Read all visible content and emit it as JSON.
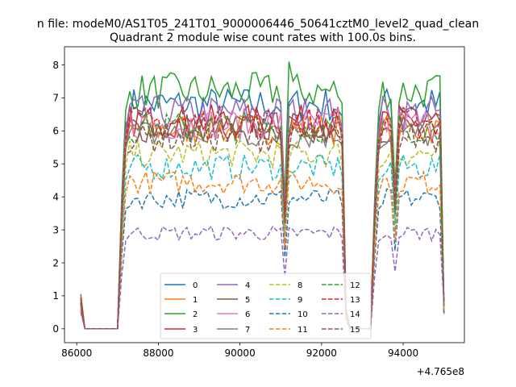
{
  "figure": {
    "suptitle": "n file: modeM0/AS1T05_241T01_9000006446_50641cztM0_level2_quad_clean",
    "offset_label": "+4.765e8"
  },
  "chart_data": {
    "type": "line",
    "title": "Quadrant 2 module wise count rates with 100.0s bins.",
    "xlabel": "",
    "ylabel": "",
    "xlim": [
      85700,
      95500
    ],
    "ylim": [
      -0.42,
      8.55
    ],
    "x_offset": 476500000,
    "x_ticks": [
      86000,
      88000,
      90000,
      92000,
      94000
    ],
    "x_tick_labels": [
      "86000",
      "88000",
      "90000",
      "92000",
      "94000"
    ],
    "y_ticks": [
      0,
      1,
      2,
      3,
      4,
      5,
      6,
      7,
      8
    ],
    "y_tick_labels": [
      "0",
      "1",
      "2",
      "3",
      "4",
      "5",
      "6",
      "7",
      "8"
    ],
    "grid": false,
    "legend_placement": "lower center, 4 columns",
    "x_bins": {
      "start": 86100,
      "step": 100,
      "count": 90
    },
    "segments": [
      {
        "from": 86100,
        "to": 86200,
        "state": "decay"
      },
      {
        "from": 86200,
        "to": 87100,
        "state": "zero"
      },
      {
        "from": 87100,
        "to": 87300,
        "state": "rise"
      },
      {
        "from": 87300,
        "to": 92500,
        "state": "on"
      },
      {
        "from": 92500,
        "to": 92600,
        "state": "drop"
      },
      {
        "from": 92600,
        "to": 92800,
        "state": "decay"
      },
      {
        "from": 92800,
        "to": 93300,
        "state": "zero"
      },
      {
        "from": 93300,
        "to": 93500,
        "state": "rise"
      },
      {
        "from": 93500,
        "to": 95000,
        "state": "on"
      }
    ],
    "series": [
      {
        "name": "0",
        "color": "#1f77b4",
        "dash": "solid",
        "level": 6.8,
        "first": 0.9,
        "peak": 7.55
      },
      {
        "name": "1",
        "color": "#ff7f0e",
        "dash": "solid",
        "level": 6.05,
        "first": 0.75,
        "peak": 6.9
      },
      {
        "name": "2",
        "color": "#2ca02c",
        "dash": "solid",
        "level": 7.2,
        "first": 1.05,
        "peak": 8.1
      },
      {
        "name": "3",
        "color": "#d62728",
        "dash": "solid",
        "level": 6.3,
        "first": 0.95,
        "peak": 6.9
      },
      {
        "name": "4",
        "color": "#9467bd",
        "dash": "solid",
        "level": 6.55,
        "first": 0.85,
        "peak": 7.3
      },
      {
        "name": "5",
        "color": "#8c564b",
        "dash": "solid",
        "level": 6.1,
        "first": 0.8,
        "peak": 6.7
      },
      {
        "name": "6",
        "color": "#e377c2",
        "dash": "solid",
        "level": 6.2,
        "first": 0.8,
        "peak": 6.8
      },
      {
        "name": "7",
        "color": "#7f7f7f",
        "dash": "solid",
        "level": 5.9,
        "first": 0.8,
        "peak": 6.6
      },
      {
        "name": "8",
        "color": "#bcbd22",
        "dash": "dashed",
        "level": 5.3,
        "first": 0.7,
        "peak": 5.9
      },
      {
        "name": "9",
        "color": "#17becf",
        "dash": "dashed",
        "level": 4.9,
        "first": 0.65,
        "peak": 5.5
      },
      {
        "name": "10",
        "color": "#1f77b4",
        "dash": "dashed",
        "level": 3.95,
        "first": 0.55,
        "peak": 4.7
      },
      {
        "name": "11",
        "color": "#ff7f0e",
        "dash": "dashed",
        "level": 4.45,
        "first": 0.6,
        "peak": 5.1
      },
      {
        "name": "12",
        "color": "#2ca02c",
        "dash": "dashed",
        "level": 6.1,
        "first": 0.8,
        "peak": 6.7
      },
      {
        "name": "13",
        "color": "#d62728",
        "dash": "dashed",
        "level": 6.25,
        "first": 0.8,
        "peak": 6.85
      },
      {
        "name": "14",
        "color": "#9467bd",
        "dash": "dashed",
        "level": 2.9,
        "first": 0.5,
        "peak": 3.4
      },
      {
        "name": "15",
        "color": "#8c564b",
        "dash": "dashed",
        "level": 5.8,
        "first": 0.75,
        "peak": 6.4
      }
    ]
  }
}
